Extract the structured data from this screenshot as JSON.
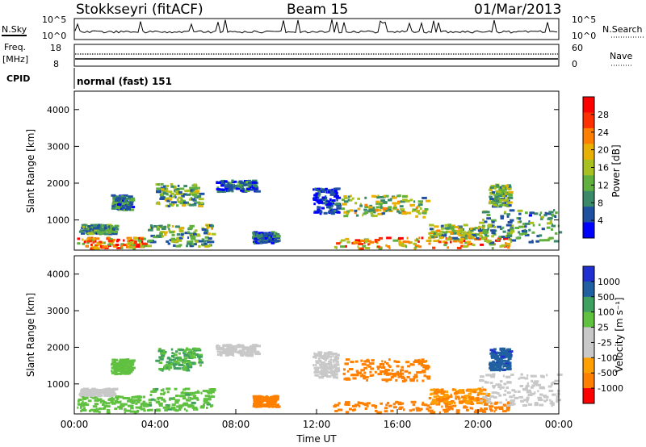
{
  "header": {
    "station": "Stokkseyri (fitACF)",
    "beam": "Beam 15",
    "date": "01/Mar/2013"
  },
  "panels": {
    "nsky_label": "N.Sky",
    "nsky_ticks": [
      "10^5",
      "10^0"
    ],
    "nsearch_label": "N.Search",
    "nsearch_ticks": [
      "10^5",
      "10^0"
    ],
    "freq_label": "Freq.",
    "freq_unit": "[MHz]",
    "freq_ticks": [
      "18",
      "8"
    ],
    "nave_label": "Nave",
    "nave_ticks": [
      "60",
      "0"
    ],
    "cpid_label": "CPID",
    "cpid_text": "normal (fast) 151"
  },
  "chart_data": [
    {
      "type": "heatmap",
      "name": "power",
      "ylabel": "Slant Range [km]",
      "yticks": [
        "4000",
        "3000",
        "2000",
        "1000"
      ],
      "colorbar_label": "Power [dB]",
      "colorbar_ticks": [
        "28",
        "24",
        "20",
        "16",
        "12",
        "8",
        "4"
      ],
      "colors": [
        "#0000ff",
        "#2050a0",
        "#3a8a6a",
        "#60b040",
        "#a8c020",
        "#e8b000",
        "#ff8000",
        "#ff3000",
        "#ff0000"
      ],
      "ylim": [
        180,
        4500
      ],
      "xlim": [
        "00:00",
        "24:00"
      ],
      "scatter": [
        {
          "t": [
            0.1,
            3.5
          ],
          "r": [
            250,
            550
          ],
          "v": 24
        },
        {
          "t": [
            3.6,
            6.8
          ],
          "r": [
            300,
            900
          ],
          "v": 14
        },
        {
          "t": [
            0.2,
            2.0
          ],
          "r": [
            650,
            900
          ],
          "v": 12
        },
        {
          "t": [
            1.8,
            2.8
          ],
          "r": [
            1300,
            1700
          ],
          "v": 10
        },
        {
          "t": [
            4.0,
            6.2
          ],
          "r": [
            1400,
            2000
          ],
          "v": 14
        },
        {
          "t": [
            7.0,
            9.0
          ],
          "r": [
            1800,
            2100
          ],
          "v": 8
        },
        {
          "t": [
            8.8,
            10.0
          ],
          "r": [
            400,
            700
          ],
          "v": 8
        },
        {
          "t": [
            11.8,
            13.0
          ],
          "r": [
            1200,
            1900
          ],
          "v": 6
        },
        {
          "t": [
            13.2,
            17.5
          ],
          "r": [
            1100,
            1700
          ],
          "v": 16
        },
        {
          "t": [
            12.8,
            21.5
          ],
          "r": [
            250,
            550
          ],
          "v": 22
        },
        {
          "t": [
            17.5,
            20.5
          ],
          "r": [
            500,
            900
          ],
          "v": 16
        },
        {
          "t": [
            20.0,
            24.0
          ],
          "r": [
            400,
            1300
          ],
          "v": 12
        },
        {
          "t": [
            20.5,
            21.5
          ],
          "r": [
            1400,
            2000
          ],
          "v": 14
        }
      ]
    },
    {
      "type": "heatmap",
      "name": "velocity",
      "xlabel": "Time UT",
      "ylabel": "Slant Range [km]",
      "yticks": [
        "4000",
        "3000",
        "2000",
        "1000"
      ],
      "xticks": [
        "00:00",
        "04:00",
        "08:00",
        "12:00",
        "16:00",
        "20:00",
        "00:00"
      ],
      "colorbar_label": "Velocity [m s⁻¹]",
      "colorbar_ticks": [
        "1000",
        "500",
        "100",
        "25",
        "-25",
        "-100",
        "-500",
        "-1000"
      ],
      "colors": [
        "#ff0000",
        "#ff8000",
        "#ffa000",
        "#c8c8c8",
        "#c8c8c8",
        "#60c040",
        "#40a060",
        "#2060a0",
        "#2030d0"
      ],
      "ylim": [
        180,
        4500
      ],
      "xlim": [
        "00:00",
        "24:00"
      ],
      "scatter": [
        {
          "t": [
            0.1,
            3.5
          ],
          "r": [
            250,
            700
          ],
          "v": 150
        },
        {
          "t": [
            3.6,
            6.8
          ],
          "r": [
            300,
            900
          ],
          "v": 200
        },
        {
          "t": [
            0.2,
            2.0
          ],
          "r": [
            700,
            900
          ],
          "v": 0
        },
        {
          "t": [
            1.8,
            2.8
          ],
          "r": [
            1300,
            1700
          ],
          "v": 150
        },
        {
          "t": [
            4.0,
            6.2
          ],
          "r": [
            1400,
            2000
          ],
          "v": 250
        },
        {
          "t": [
            7.0,
            9.0
          ],
          "r": [
            1800,
            2100
          ],
          "v": 0
        },
        {
          "t": [
            8.8,
            10.0
          ],
          "r": [
            400,
            700
          ],
          "v": -200
        },
        {
          "t": [
            11.8,
            13.0
          ],
          "r": [
            1200,
            1900
          ],
          "v": 0
        },
        {
          "t": [
            13.2,
            17.5
          ],
          "r": [
            1100,
            1700
          ],
          "v": -150
        },
        {
          "t": [
            12.8,
            21.5
          ],
          "r": [
            250,
            550
          ],
          "v": -250
        },
        {
          "t": [
            17.5,
            20.5
          ],
          "r": [
            500,
            900
          ],
          "v": -100
        },
        {
          "t": [
            20.0,
            24.0
          ],
          "r": [
            400,
            1300
          ],
          "v": 0
        },
        {
          "t": [
            20.5,
            21.5
          ],
          "r": [
            1400,
            2000
          ],
          "v": 800
        }
      ]
    }
  ]
}
